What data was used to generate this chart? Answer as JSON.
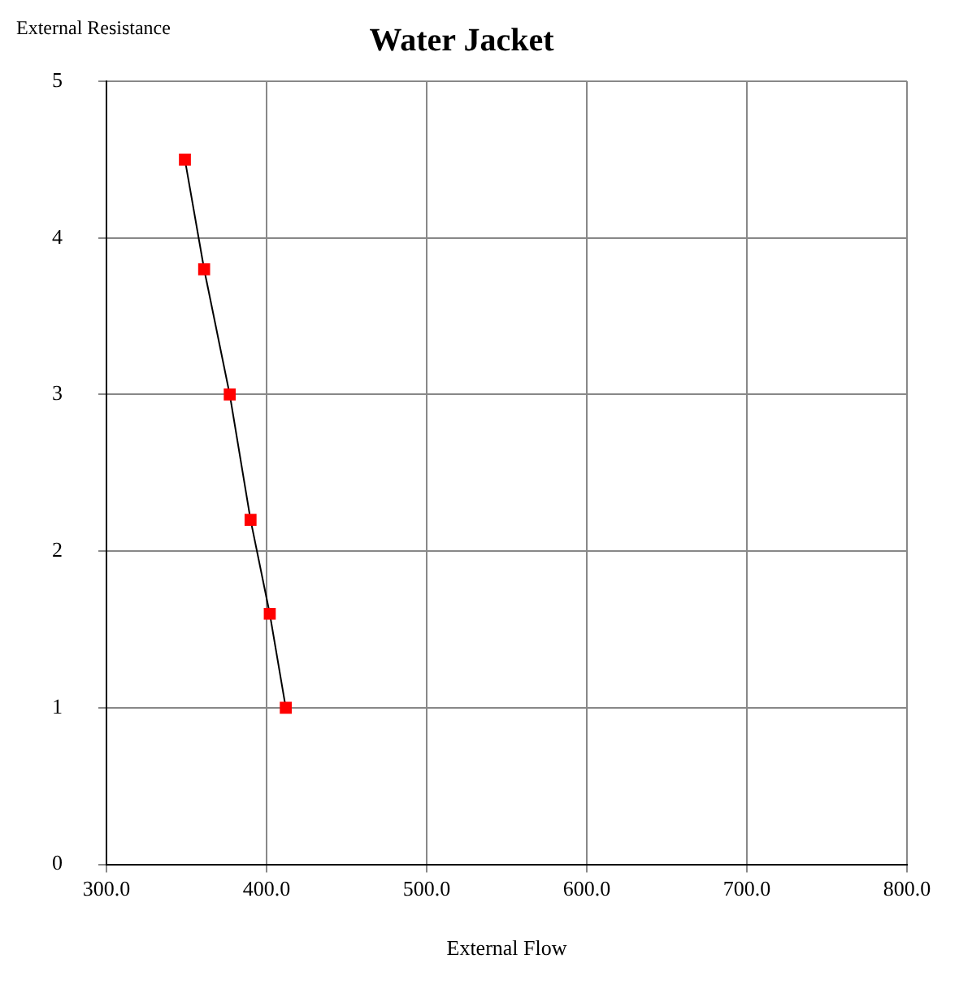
{
  "chart_data": {
    "type": "line",
    "title": "Water Jacket",
    "xlabel": "External Flow",
    "ylabel": "External Resistance",
    "x": [
      349,
      361,
      377,
      390,
      402,
      412
    ],
    "series": [
      {
        "color": "#ff0000",
        "values": [
          4.5,
          3.8,
          3.0,
          2.2,
          1.6,
          1.0
        ]
      }
    ],
    "xlim": [
      300,
      800
    ],
    "xticks": [
      {
        "value": 300,
        "label": "300.0"
      },
      {
        "value": 400,
        "label": "400.0"
      },
      {
        "value": 500,
        "label": "500.0"
      },
      {
        "value": 600,
        "label": "600.0"
      },
      {
        "value": 700,
        "label": "700.0"
      },
      {
        "value": 800,
        "label": "800.0"
      }
    ],
    "ylim": [
      0,
      5
    ],
    "yticks": [
      0,
      1,
      2,
      3,
      4,
      5
    ],
    "grid": true,
    "legend": false,
    "marker": "square",
    "line_style": "solid"
  }
}
